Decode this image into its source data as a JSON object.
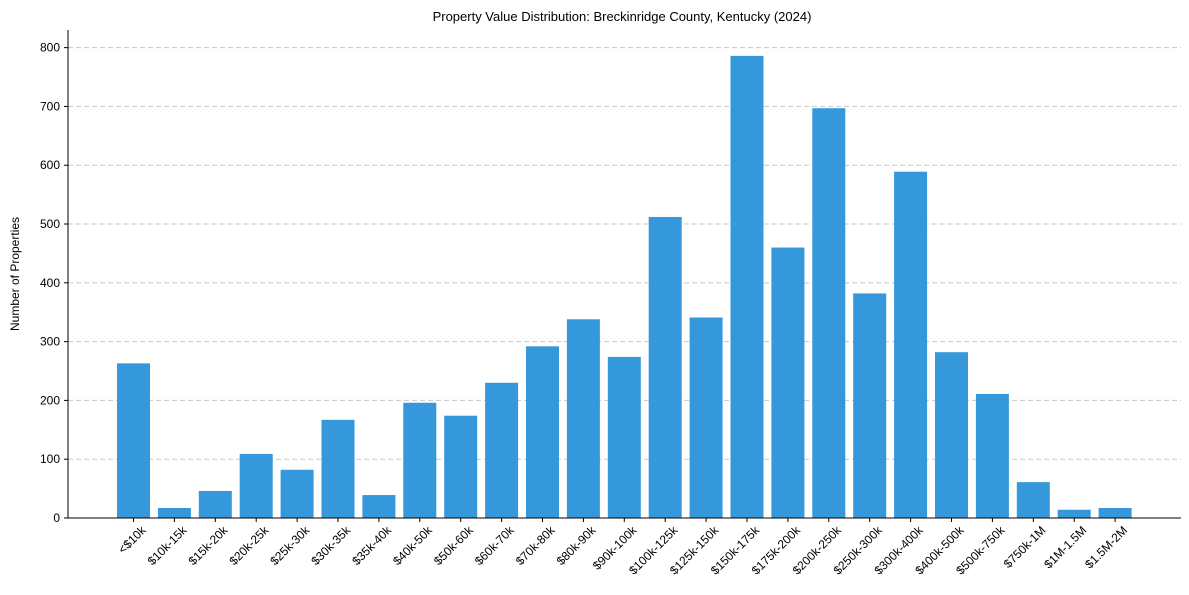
{
  "chart_data": {
    "type": "bar",
    "title": "Property Value Distribution: Breckinridge County, Kentucky (2024)",
    "xlabel": "",
    "ylabel": "Number of Properties",
    "ylim": [
      0,
      830
    ],
    "yticks": [
      0,
      100,
      200,
      300,
      400,
      500,
      600,
      700,
      800
    ],
    "grid": "y-dashed",
    "bar_color": "#3498db",
    "categories": [
      "<$10k",
      "$10k-15k",
      "$15k-20k",
      "$20k-25k",
      "$25k-30k",
      "$30k-35k",
      "$35k-40k",
      "$40k-50k",
      "$50k-60k",
      "$60k-70k",
      "$70k-80k",
      "$80k-90k",
      "$90k-100k",
      "$100k-125k",
      "$125k-150k",
      "$150k-175k",
      "$175k-200k",
      "$200k-250k",
      "$250k-300k",
      "$300k-400k",
      "$400k-500k",
      "$500k-750k",
      "$750k-1M",
      "$1M-1.5M",
      "$1.5M-2M"
    ],
    "values": [
      263,
      17,
      46,
      109,
      82,
      167,
      39,
      196,
      174,
      230,
      292,
      338,
      274,
      512,
      341,
      786,
      460,
      697,
      382,
      589,
      282,
      211,
      61,
      14,
      17
    ]
  }
}
